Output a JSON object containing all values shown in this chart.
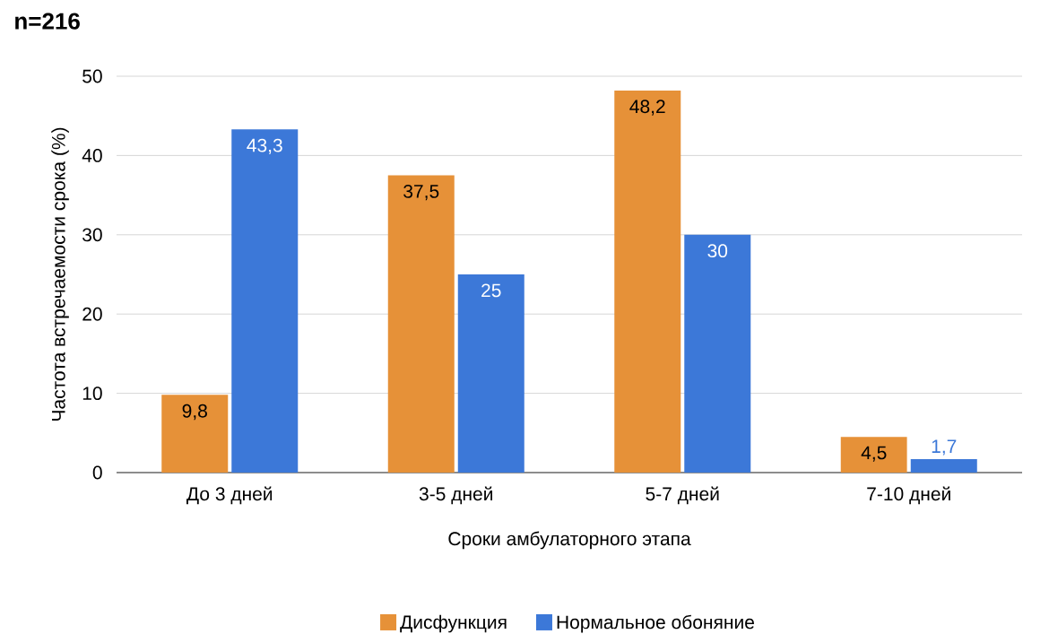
{
  "chart_data": {
    "type": "bar",
    "title": "n=216",
    "xlabel": "Сроки амбулаторного этапа",
    "ylabel": "Частота встречаемости срока (%)",
    "categories": [
      "До 3 дней",
      "3-5 дней",
      "5-7 дней",
      "7-10 дней"
    ],
    "series": [
      {
        "name": "Дисфункция",
        "color": "#e69138",
        "values": [
          9.8,
          37.5,
          48.2,
          4.5
        ],
        "value_labels": [
          "9,8",
          "37,5",
          "48,2",
          "4,5"
        ]
      },
      {
        "name": "Нормальное обоняние",
        "color": "#3c78d8",
        "values": [
          43.3,
          25,
          30,
          1.7
        ],
        "value_labels": [
          "43,3",
          "25",
          "30",
          "1,7"
        ]
      }
    ],
    "ylim": [
      0,
      50
    ],
    "yticks": [
      0,
      10,
      20,
      30,
      40,
      50
    ],
    "grid": "y",
    "legend": "bottom"
  }
}
